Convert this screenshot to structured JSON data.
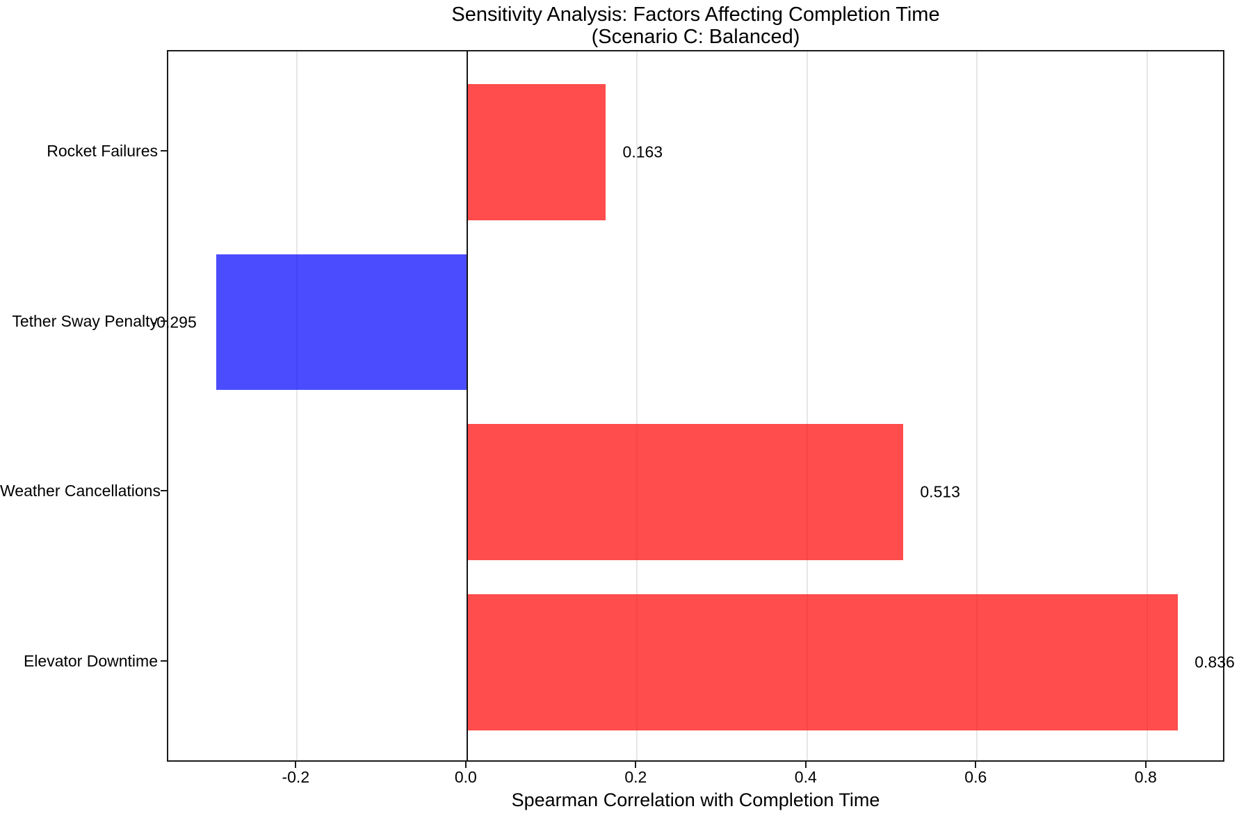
{
  "figure": {
    "background": "#ffffff"
  },
  "chart_data": {
    "type": "bar",
    "orientation": "horizontal",
    "title": "Sensitivity Analysis: Factors Affecting Completion Time",
    "subtitle": "(Scenario C: Balanced)",
    "xlabel": "Spearman Correlation with Completion Time",
    "ylabel": "",
    "categories": [
      "Rocket Failures",
      "Tether Sway Penalty",
      "Weather Cancellations",
      "Elevator Downtime"
    ],
    "values": [
      0.163,
      -0.295,
      0.513,
      0.836
    ],
    "value_labels": [
      "0.163",
      "-0.295",
      "0.513",
      "0.836"
    ],
    "bar_colors": [
      "#ff0000",
      "#0000ff",
      "#ff0000",
      "#ff0000"
    ],
    "bar_alpha": 0.7,
    "positive_color": "#ff0000",
    "negative_color": "#0000ff",
    "xticks": [
      -0.2,
      0.0,
      0.2,
      0.4,
      0.6,
      0.8
    ],
    "xtick_labels": [
      "-0.2",
      "0.0",
      "0.2",
      "0.4",
      "0.6",
      "0.8"
    ],
    "xlim": [
      -0.3516,
      0.8926
    ],
    "ylim": [
      -0.59,
      3.59
    ],
    "bar_height": 0.8,
    "grid": "x",
    "grid_color": "#e6e6e6",
    "zero_line_color": "#141414",
    "spine_color": "#1a1a1a",
    "value_label_offset": 0.02,
    "legend": "none"
  }
}
